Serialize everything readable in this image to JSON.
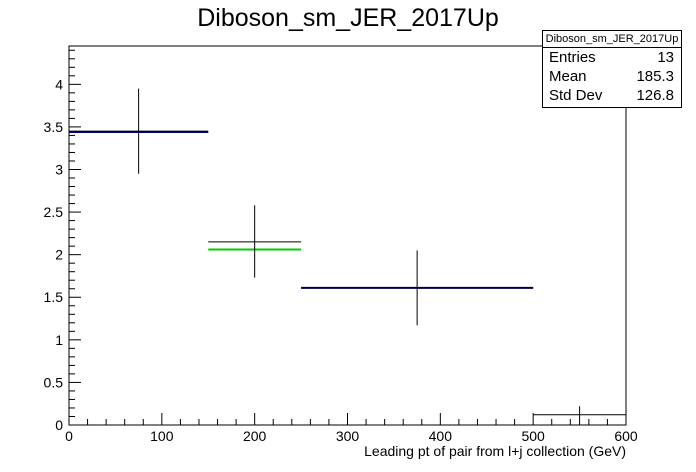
{
  "chart_data": {
    "type": "histogram",
    "title": "Diboson_sm_JER_2017Up",
    "xlabel": "Leading pt of pair from l+j collection (GeV)",
    "ylabel": "",
    "xlim": [
      0,
      600
    ],
    "ylim": [
      0,
      4.45
    ],
    "x_ticks": [
      "0",
      "100",
      "200",
      "300",
      "400",
      "500",
      "600"
    ],
    "y_ticks": [
      "0",
      "0.5",
      "1",
      "1.5",
      "2",
      "2.5",
      "3",
      "3.5",
      "4"
    ],
    "grid": false,
    "bins": [
      {
        "x_low": 0,
        "x_high": 150,
        "x_center": 75,
        "value": 3.45,
        "err_low": 2.95,
        "err_high": 3.95
      },
      {
        "x_low": 150,
        "x_high": 250,
        "x_center": 200,
        "value": 2.15,
        "err_low": 1.73,
        "err_high": 2.58
      },
      {
        "x_low": 250,
        "x_high": 500,
        "x_center": 375,
        "value": 1.61,
        "err_low": 1.17,
        "err_high": 2.05
      },
      {
        "x_low": 500,
        "x_high": 600,
        "x_center": 550,
        "value": 0.12,
        "err_low": 0.0,
        "err_high": 0.22
      }
    ],
    "overlay": [
      {
        "x_low": 0,
        "x_high": 150,
        "value": 3.44,
        "color": "#000080"
      },
      {
        "x_low": 150,
        "x_high": 250,
        "value": 2.06,
        "color": "#00cc00"
      },
      {
        "x_low": 250,
        "x_high": 500,
        "value": 1.61,
        "color": "#000080"
      }
    ],
    "colors": {
      "data": "#000000",
      "overlay_blue": "#000080",
      "overlay_green": "#00cc00"
    },
    "stats": {
      "name": "Diboson_sm_JER_2017Up",
      "rows": [
        {
          "label": "Entries",
          "value": "13"
        },
        {
          "label": "Mean",
          "value": "185.3"
        },
        {
          "label": "Std Dev",
          "value": "126.8"
        }
      ]
    }
  }
}
